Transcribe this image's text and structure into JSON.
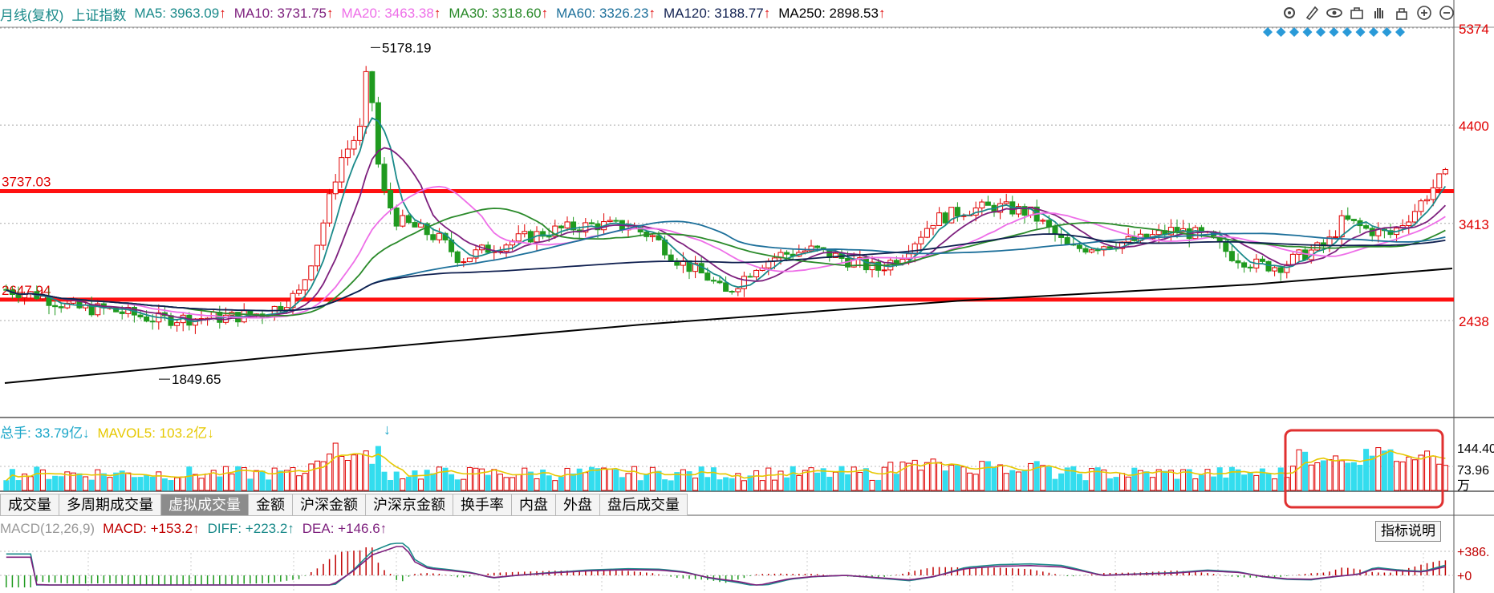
{
  "header": {
    "period": "月线(复权)",
    "symbol": "上证指数",
    "ma": [
      {
        "label": "MA5: 3963.09",
        "arrow": "↑",
        "color": "#1a8a8a"
      },
      {
        "label": "MA10: 3731.75",
        "arrow": "↑",
        "color": "#7d1f7d"
      },
      {
        "label": "MA20: 3463.38",
        "arrow": "↑",
        "color": "#ee6ee8"
      },
      {
        "label": "MA30: 3318.60",
        "arrow": "↑",
        "color": "#2a8a2a"
      },
      {
        "label": "MA60: 3326.23",
        "arrow": "↑",
        "color": "#1c6f9a"
      },
      {
        "label": "MA120: 3188.77",
        "arrow": "↑",
        "color": "#102050"
      },
      {
        "label": "MA250: 2898.53",
        "arrow": "↑",
        "color": "#000000"
      }
    ]
  },
  "toolbar": {
    "icons": [
      "gear-icon",
      "pen-icon",
      "eye-icon",
      "bag-icon",
      "hand-icon",
      "lock-icon",
      "zoom-in-icon",
      "zoom-out-icon"
    ]
  },
  "price_axis": {
    "ticks": [
      "5374",
      "4400",
      "3413",
      "2438"
    ],
    "color": "#e00000"
  },
  "levels": {
    "upper": "3737.03",
    "lower": "2647.94"
  },
  "annotations": {
    "high": "5178.19",
    "low": "1849.65"
  },
  "volume_panel": {
    "label": "总手: 33.79亿",
    "label_arrow": "↓",
    "mavol": "MAVOL5: 103.2亿",
    "mavol_arrow": "↓",
    "axis": [
      "144.40",
      "73.96",
      "万"
    ]
  },
  "tabs": [
    "成交量",
    "多周期成交量",
    "虚拟成交量",
    "金额",
    "沪深金额",
    "沪深京金额",
    "换手率",
    "内盘",
    "外盘",
    "盘后成交量"
  ],
  "active_tab": 2,
  "macd_panel": {
    "label": "MACD(12,26,9)",
    "macd": "MACD: +153.2",
    "macd_arrow": "↑",
    "diff": "DIFF: +223.2",
    "diff_arrow": "↑",
    "dea": "DEA: +146.6",
    "dea_arrow": "↑",
    "axis": [
      "+386.",
      "+0"
    ],
    "help_button": "指标说明"
  },
  "colors": {
    "up": "#e00000",
    "down": "#1f9a1f",
    "vol_up": "#e00000",
    "vol_down": "#33ddee",
    "level_line": "#ff1010",
    "highlight": "#e03030"
  }
}
